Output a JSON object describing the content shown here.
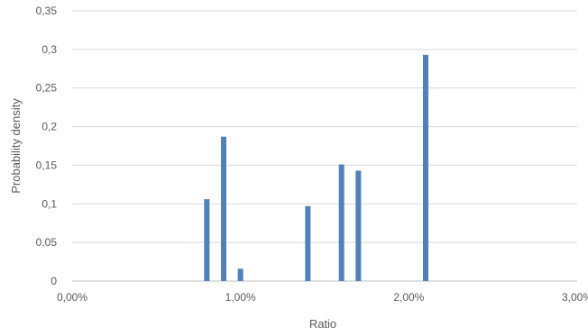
{
  "chart_data": {
    "type": "bar",
    "title": "",
    "xlabel": "Ratio",
    "ylabel": "Probability density",
    "xlim": [
      0,
      0.03
    ],
    "ylim": [
      0,
      0.35
    ],
    "grid": true,
    "legend": "none",
    "bar_color": "#4F81BD",
    "grid_color": "#D9D9D9",
    "x_ticks": [
      {
        "value": 0,
        "label": "0,00%"
      },
      {
        "value": 0.01,
        "label": "1,00%"
      },
      {
        "value": 0.02,
        "label": "2,00%"
      },
      {
        "value": 0.03,
        "label": "3,00%"
      }
    ],
    "y_ticks": [
      {
        "value": 0,
        "label": "0"
      },
      {
        "value": 0.05,
        "label": "0,05"
      },
      {
        "value": 0.1,
        "label": "0,1"
      },
      {
        "value": 0.15,
        "label": "0,15"
      },
      {
        "value": 0.2,
        "label": "0,2"
      },
      {
        "value": 0.25,
        "label": "0,25"
      },
      {
        "value": 0.3,
        "label": "0,3"
      },
      {
        "value": 0.35,
        "label": "0,35"
      }
    ],
    "points": [
      {
        "x": 0.008,
        "y": 0.106
      },
      {
        "x": 0.009,
        "y": 0.187
      },
      {
        "x": 0.01,
        "y": 0.016
      },
      {
        "x": 0.014,
        "y": 0.097
      },
      {
        "x": 0.016,
        "y": 0.151
      },
      {
        "x": 0.017,
        "y": 0.143
      },
      {
        "x": 0.021,
        "y": 0.293
      }
    ]
  }
}
